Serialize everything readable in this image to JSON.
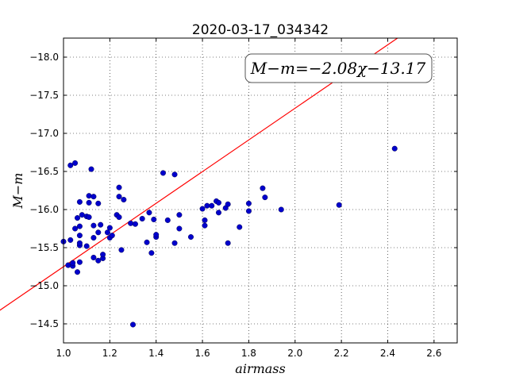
{
  "chart_data": {
    "type": "scatter",
    "title": "2020-03-17_034342",
    "xlabel": "airmass",
    "ylabel": "M−m",
    "xlim": [
      1.0,
      2.7
    ],
    "ylim": [
      -18.25,
      -14.25
    ],
    "inverted_y": true,
    "grid": true,
    "xticks": [
      1.0,
      1.2,
      1.4,
      1.6,
      1.8,
      2.0,
      2.2,
      2.4,
      2.6
    ],
    "xtick_labels": [
      "1.0",
      "1.2",
      "1.4",
      "1.6",
      "1.8",
      "2.0",
      "2.2",
      "2.4",
      "2.6"
    ],
    "yticks": [
      -14.5,
      -15.0,
      -15.5,
      -16.0,
      -16.5,
      -17.0,
      -17.5,
      -18.0
    ],
    "ytick_labels": [
      "−14.5",
      "−15.0",
      "−15.5",
      "−16.0",
      "−16.5",
      "−17.0",
      "−17.5",
      "−18.0"
    ],
    "annotation": "M−m=−2.08χ−13.17",
    "fit": {
      "slope": -2.08,
      "intercept": -13.17,
      "color": "#ff0000"
    },
    "point_color": "#0000cc",
    "points": [
      [
        1.0,
        -15.58
      ],
      [
        1.02,
        -15.27
      ],
      [
        1.03,
        -15.6
      ],
      [
        1.04,
        -15.26
      ],
      [
        1.04,
        -15.3
      ],
      [
        1.05,
        -15.75
      ],
      [
        1.06,
        -15.89
      ],
      [
        1.06,
        -15.18
      ],
      [
        1.07,
        -15.31
      ],
      [
        1.07,
        -15.53
      ],
      [
        1.07,
        -15.56
      ],
      [
        1.07,
        -15.66
      ],
      [
        1.07,
        -15.78
      ],
      [
        1.07,
        -16.1
      ],
      [
        1.08,
        -15.93
      ],
      [
        1.1,
        -15.91
      ],
      [
        1.1,
        -15.52
      ],
      [
        1.11,
        -15.9
      ],
      [
        1.11,
        -16.09
      ],
      [
        1.11,
        -16.18
      ],
      [
        1.13,
        -15.37
      ],
      [
        1.13,
        -15.63
      ],
      [
        1.13,
        -15.79
      ],
      [
        1.13,
        -16.17
      ],
      [
        1.15,
        -15.33
      ],
      [
        1.15,
        -15.7
      ],
      [
        1.15,
        -16.08
      ],
      [
        1.16,
        -15.8
      ],
      [
        1.17,
        -15.36
      ],
      [
        1.17,
        -15.41
      ],
      [
        1.19,
        -15.7
      ],
      [
        1.2,
        -15.63
      ],
      [
        1.2,
        -15.76
      ],
      [
        1.21,
        -15.66
      ],
      [
        1.23,
        -15.93
      ],
      [
        1.24,
        -16.17
      ],
      [
        1.24,
        -16.29
      ],
      [
        1.24,
        -15.9
      ],
      [
        1.25,
        -15.47
      ],
      [
        1.26,
        -16.13
      ],
      [
        1.29,
        -15.82
      ],
      [
        1.3,
        -14.49
      ],
      [
        1.31,
        -15.81
      ],
      [
        1.34,
        -15.88
      ],
      [
        1.36,
        -15.57
      ],
      [
        1.37,
        -15.96
      ],
      [
        1.38,
        -15.43
      ],
      [
        1.39,
        -15.87
      ],
      [
        1.4,
        -15.64
      ],
      [
        1.4,
        -15.67
      ],
      [
        1.43,
        -16.48
      ],
      [
        1.45,
        -15.86
      ],
      [
        1.48,
        -16.46
      ],
      [
        1.48,
        -15.56
      ],
      [
        1.5,
        -15.75
      ],
      [
        1.5,
        -15.93
      ],
      [
        1.55,
        -15.64
      ],
      [
        1.6,
        -16.01
      ],
      [
        1.61,
        -15.79
      ],
      [
        1.61,
        -15.86
      ],
      [
        1.62,
        -16.05
      ],
      [
        1.64,
        -16.05
      ],
      [
        1.66,
        -16.11
      ],
      [
        1.67,
        -15.96
      ],
      [
        1.67,
        -16.09
      ],
      [
        1.7,
        -16.02
      ],
      [
        1.71,
        -16.07
      ],
      [
        1.71,
        -15.56
      ],
      [
        1.76,
        -15.77
      ],
      [
        1.8,
        -15.98
      ],
      [
        1.8,
        -16.08
      ],
      [
        1.86,
        -16.28
      ],
      [
        1.87,
        -16.16
      ],
      [
        1.94,
        -16.0
      ],
      [
        2.19,
        -16.06
      ],
      [
        2.43,
        -16.8
      ],
      [
        1.03,
        -16.58
      ],
      [
        1.05,
        -16.61
      ],
      [
        1.12,
        -16.53
      ]
    ]
  }
}
